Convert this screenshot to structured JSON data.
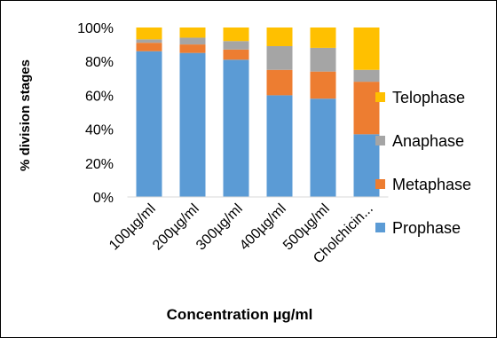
{
  "chart_data": {
    "type": "bar",
    "stacked": true,
    "percent_scale": true,
    "categories": [
      "100µg/ml",
      "200µg/ml",
      "300µg/ml",
      "400µg/ml",
      "500µg/ml",
      "Cholchicin..."
    ],
    "series": [
      {
        "name": "Prophase",
        "color": "#5B9BD5",
        "values": [
          86,
          85,
          81,
          60,
          58,
          37
        ]
      },
      {
        "name": "Metaphase",
        "color": "#ED7D31",
        "values": [
          5,
          5,
          6,
          15,
          16,
          31
        ]
      },
      {
        "name": "Anaphase",
        "color": "#A5A5A5",
        "values": [
          2,
          4,
          5,
          14,
          14,
          7
        ]
      },
      {
        "name": "Telophase",
        "color": "#FFC000",
        "values": [
          7,
          6,
          8,
          11,
          12,
          25
        ]
      }
    ],
    "y_ticks": [
      "0%",
      "20%",
      "40%",
      "60%",
      "80%",
      "100%"
    ],
    "ylim": [
      0,
      100
    ],
    "xlabel": "Concentration µg/ml",
    "ylabel": "% division stages",
    "grid": false,
    "legend_position": "right",
    "legend_order": [
      "Telophase",
      "Anaphase",
      "Metaphase",
      "Prophase"
    ]
  }
}
